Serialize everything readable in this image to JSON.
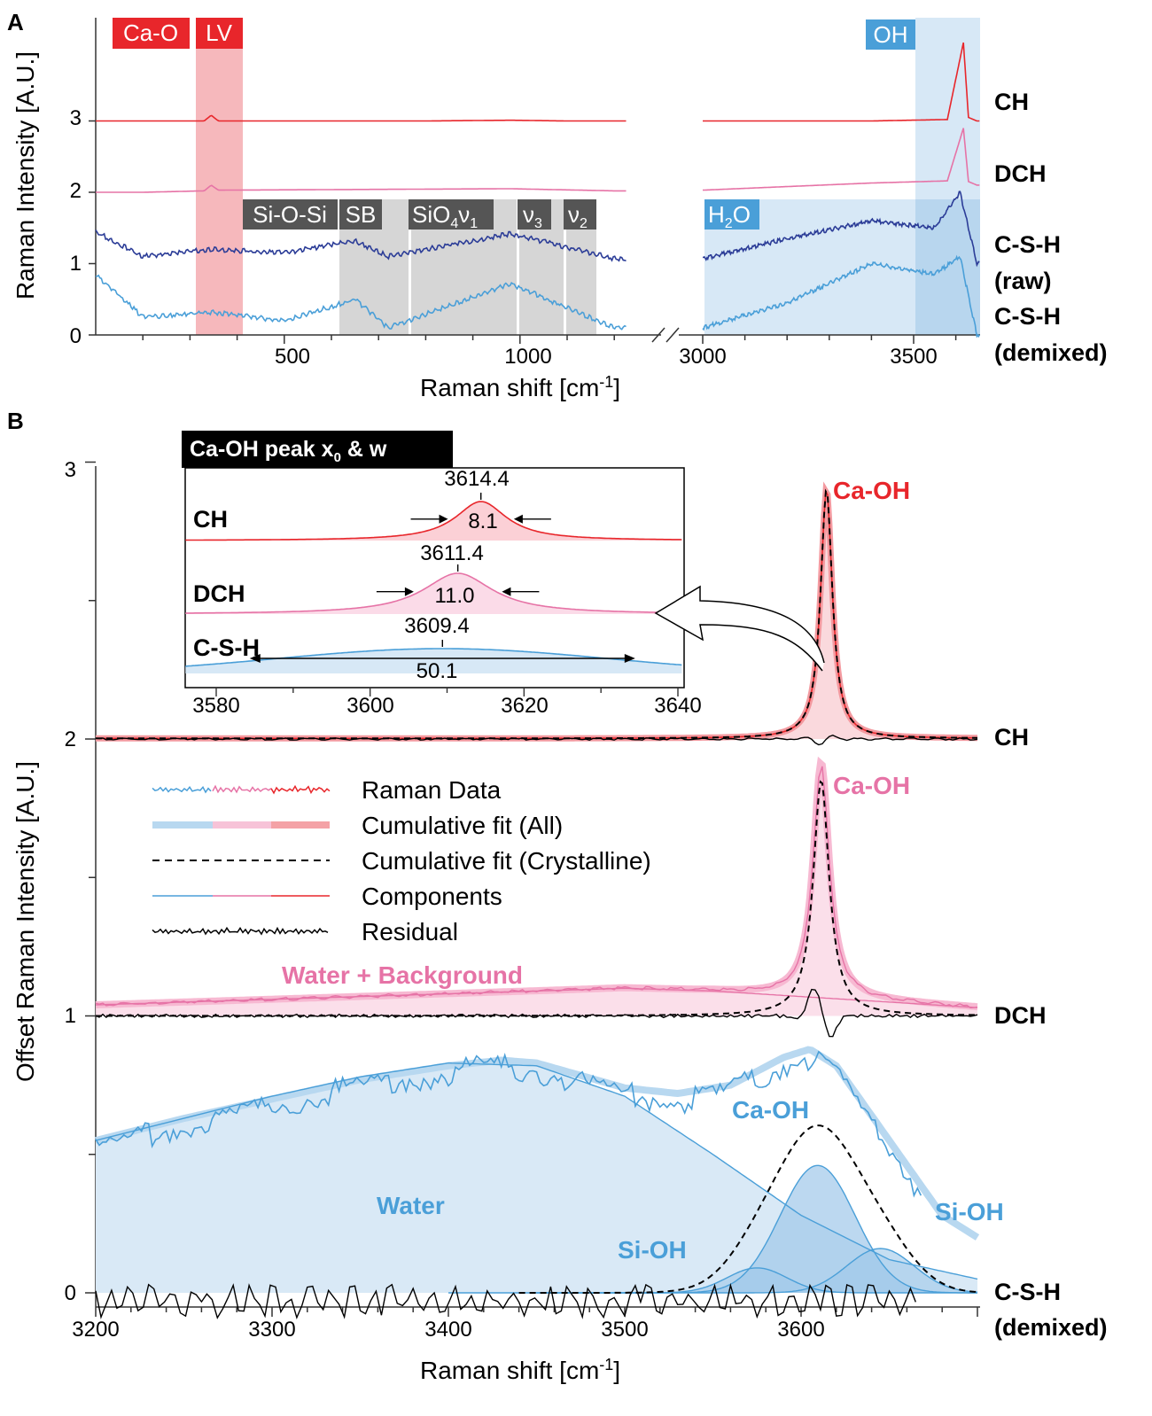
{
  "panels": {
    "a": "A",
    "b": "B"
  },
  "panel_a": {
    "ylabel": "Raman Intensity [A.U.]",
    "xlabel_main": "Raman shift [cm",
    "xlabel_sup": "-1",
    "xlabel_end": "]",
    "yticks": [
      "0",
      "1",
      "2",
      "3"
    ],
    "xticks_left": [
      "500",
      "1000"
    ],
    "xticks_right": [
      "3000",
      "3500"
    ],
    "tags": {
      "ca_o": "Ca-O",
      "lv": "LV",
      "oh": "OH",
      "siosi": "Si-O-Si",
      "sb": "SB",
      "sio4_a": "SiO",
      "sio4_sub": "4",
      "sio4_nu": "ν",
      "sio4_nusub": "1",
      "nu3": "ν",
      "nu3_sub": "3",
      "nu2": "ν",
      "nu2_sub": "2",
      "h2o_a": "H",
      "h2o_sub": "2",
      "h2o_b": "O"
    },
    "row_labels": {
      "ch": "CH",
      "dch": "DCH",
      "csh": "C-S-H",
      "raw": "(raw)",
      "csh2": "C-S-H",
      "demixed": "(demixed)"
    }
  },
  "panel_b": {
    "ylabel": "Offset Raman Intensity [A.U.]",
    "xlabel_main": "Raman shift [cm",
    "xlabel_sup": "-1",
    "xlabel_end": "]",
    "yticks": [
      "0",
      "1",
      "2",
      "3"
    ],
    "xticks": [
      "3200",
      "3300",
      "3400",
      "3500",
      "3600"
    ],
    "row_labels": {
      "ch": "CH",
      "dch": "DCH",
      "csh": "C-S-H",
      "demixed": "(demixed)"
    },
    "annotations": {
      "caoh_ch": "Ca-OH",
      "caoh_dch": "Ca-OH",
      "caoh_csh": "Ca-OH",
      "water_bg": "Water + Background",
      "water": "Water",
      "sioh_left": "Si-OH",
      "sioh_right": "Si-OH"
    },
    "legend": {
      "raman_data": "Raman Data",
      "cum_all": "Cumulative fit (All)",
      "cum_cryst": "Cumulative fit (Crystalline)",
      "components": "Components",
      "residual": "Residual"
    },
    "inset": {
      "title_a": "Ca-OH peak x",
      "title_sub": "0",
      "title_b": " & w",
      "rows": [
        {
          "label": "CH",
          "x0": "3614.4",
          "w": "8.1"
        },
        {
          "label": "DCH",
          "x0": "3611.4",
          "w": "11.0"
        },
        {
          "label": "C-S-H",
          "x0": "3609.4",
          "w": "50.1"
        }
      ],
      "xticks": [
        "3580",
        "3600",
        "3620",
        "3640"
      ]
    }
  },
  "colors": {
    "ch": "#e8262b",
    "dch": "#e673a6",
    "csh_raw": "#2b3c97",
    "csh": "#4a9fd8",
    "grey_tag": "#555555",
    "red_band": "#f6b8bc",
    "blue_band": "#d7e8f6",
    "grey_band": "#d6d6d6"
  },
  "chart_data": [
    {
      "type": "line",
      "panel": "A",
      "xlabel": "Raman shift [cm-1]",
      "ylabel": "Raman Intensity [A.U.]",
      "x_broken_axis": [
        [
          100,
          1225
        ],
        [
          3000,
          3700
        ]
      ],
      "ylim": [
        0,
        4.2
      ],
      "series": [
        {
          "name": "CH",
          "offset": 3.0,
          "x": [
            200,
            330,
            345,
            360,
            800,
            980,
            1100,
            1200,
            3000,
            3400,
            3580,
            3618,
            3630,
            3650
          ],
          "values": [
            3.0,
            3.0,
            3.08,
            3.0,
            3.0,
            3.01,
            3.0,
            3.0,
            3.0,
            3.0,
            3.02,
            4.1,
            3.05,
            3.0
          ]
        },
        {
          "name": "DCH",
          "offset": 2.0,
          "x": [
            200,
            330,
            345,
            360,
            980,
            1200,
            3000,
            3400,
            3580,
            3618,
            3630,
            3650
          ],
          "values": [
            2.0,
            2.02,
            2.1,
            2.03,
            2.05,
            2.02,
            2.03,
            2.13,
            2.16,
            2.9,
            2.15,
            2.1
          ]
        },
        {
          "name": "C-S-H (raw)",
          "offset": 1.0,
          "x": [
            100,
            200,
            345,
            500,
            650,
            720,
            980,
            1200,
            3000,
            3200,
            3400,
            3550,
            3610,
            3650
          ],
          "values": [
            1.45,
            1.1,
            1.2,
            1.15,
            1.32,
            1.1,
            1.42,
            1.07,
            1.07,
            1.35,
            1.6,
            1.5,
            2.0,
            1.0
          ]
        },
        {
          "name": "C-S-H (demixed)",
          "offset": 0.0,
          "x": [
            100,
            200,
            345,
            500,
            650,
            720,
            980,
            1200,
            3000,
            3200,
            3400,
            3550,
            3610,
            3650
          ],
          "values": [
            0.85,
            0.25,
            0.32,
            0.2,
            0.5,
            0.1,
            0.72,
            0.1,
            0.1,
            0.45,
            1.0,
            0.85,
            1.1,
            0.0
          ]
        }
      ],
      "bands": [
        {
          "label": "Ca-O",
          "range": [
            280,
            330
          ]
        },
        {
          "label": "LV",
          "range": [
            330,
            400
          ]
        },
        {
          "label": "Si-O-Si",
          "range": [
            400,
            600
          ]
        },
        {
          "label": "SB",
          "range": [
            600,
            730
          ]
        },
        {
          "label": "SiO4 ν1",
          "range": [
            730,
            950
          ]
        },
        {
          "label": "ν3",
          "range": [
            950,
            1050
          ]
        },
        {
          "label": "ν2",
          "range": [
            1050,
            1130
          ]
        },
        {
          "label": "H2O",
          "range": [
            3000,
            3550
          ]
        },
        {
          "label": "OH",
          "range": [
            3550,
            3700
          ]
        }
      ]
    },
    {
      "type": "line",
      "panel": "B",
      "xlabel": "Raman shift [cm-1]",
      "ylabel": "Offset Raman Intensity [A.U.]",
      "xlim": [
        3200,
        3700
      ],
      "ylim": [
        -0.05,
        3.05
      ],
      "series": [
        {
          "name": "CH Ca-OH",
          "offset": 2.0,
          "model": "lorentzian",
          "x0": 3614.4,
          "w": 8.1,
          "amplitude": 0.9,
          "baseline": 2.0
        },
        {
          "name": "DCH Ca-OH",
          "offset": 1.0,
          "model": "lorentzian",
          "x0": 3611.4,
          "w": 11.0,
          "amplitude": 0.85,
          "baseline": 1.0
        },
        {
          "name": "DCH Water + Background",
          "offset": 1.0,
          "x": [
            3200,
            3300,
            3400,
            3500,
            3550,
            3600,
            3650,
            3700
          ],
          "values": [
            1.04,
            1.06,
            1.08,
            1.1,
            1.09,
            1.07,
            1.05,
            1.03
          ]
        },
        {
          "name": "C-S-H Water",
          "offset": 0.0,
          "x": [
            3200,
            3250,
            3300,
            3350,
            3400,
            3450,
            3500,
            3550,
            3600,
            3650,
            3700
          ],
          "values": [
            0.55,
            0.63,
            0.71,
            0.78,
            0.83,
            0.82,
            0.71,
            0.5,
            0.28,
            0.12,
            0.05
          ]
        },
        {
          "name": "C-S-H Ca-OH",
          "offset": 0.0,
          "model": "gaussian",
          "x0": 3609.4,
          "w": 50.1,
          "amplitude": 0.46
        },
        {
          "name": "C-S-H Si-OH (left)",
          "offset": 0.0,
          "model": "gaussian",
          "x0": 3575,
          "w": 40,
          "amplitude": 0.09
        },
        {
          "name": "C-S-H Si-OH (right)",
          "offset": 0.0,
          "model": "gaussian",
          "x0": 3645,
          "w": 45,
          "amplitude": 0.16
        },
        {
          "name": "C-S-H data",
          "offset": 0.0,
          "x": [
            3200,
            3250,
            3300,
            3350,
            3400,
            3430,
            3450,
            3500,
            3530,
            3560,
            3590,
            3605,
            3620,
            3650,
            3680,
            3700
          ],
          "values": [
            0.55,
            0.63,
            0.7,
            0.77,
            0.82,
            0.84,
            0.83,
            0.74,
            0.72,
            0.75,
            0.85,
            0.88,
            0.82,
            0.55,
            0.28,
            0.2
          ]
        }
      ],
      "inset": {
        "title": "Ca-OH peak x0 & w",
        "xlim": [
          3570,
          3645
        ],
        "rows": [
          {
            "name": "CH",
            "x0": 3614.4,
            "w": 8.1
          },
          {
            "name": "DCH",
            "x0": 3611.4,
            "w": 11.0
          },
          {
            "name": "C-S-H",
            "x0": 3609.4,
            "w": 50.1
          }
        ]
      }
    }
  ]
}
